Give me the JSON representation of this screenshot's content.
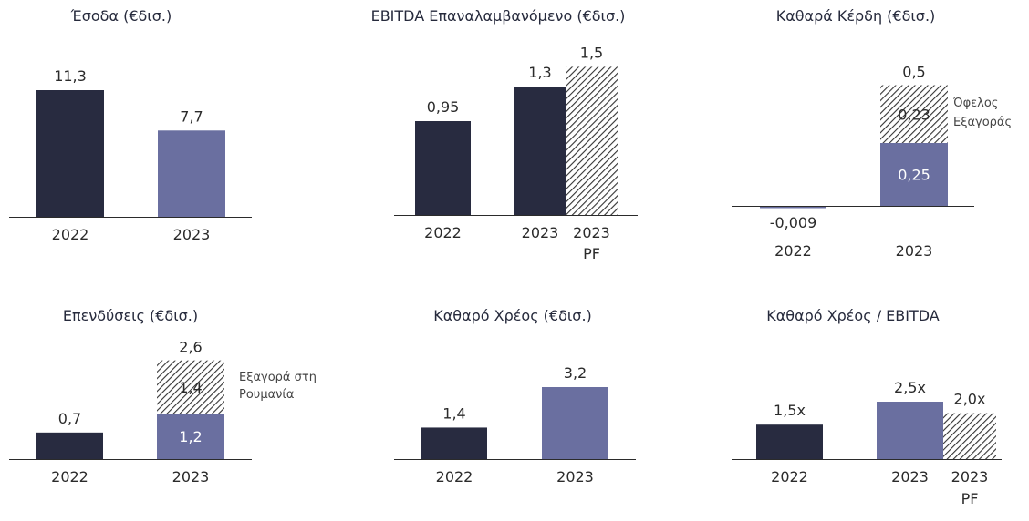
{
  "colors": {
    "dark": "#282b40",
    "purple": "#6a6fa0",
    "hatch": "#333333"
  },
  "chart_data": [
    {
      "type": "bar",
      "title": "Έσοδα (€δισ.)",
      "categories": [
        "2022",
        "2023"
      ],
      "bars": [
        {
          "value": 11.3,
          "label": "11,3",
          "color": "dark"
        },
        {
          "value": 7.7,
          "label": "7,7",
          "color": "purple"
        }
      ]
    },
    {
      "type": "bar",
      "title": "EBITDA Επαναλαμβανόμενο (€δισ.)",
      "categories": [
        "2022",
        "2023",
        "2023 PF"
      ],
      "bars": [
        {
          "value": 0.95,
          "label": "0,95",
          "color": "dark"
        },
        {
          "value": 1.3,
          "label": "1,3",
          "color": "dark"
        },
        {
          "value": 1.5,
          "label": "1,5",
          "color": "hatch"
        }
      ]
    },
    {
      "type": "bar",
      "title": "Καθαρά Κέρδη (€δισ.)",
      "categories": [
        "2022",
        "2023"
      ],
      "bars": [
        {
          "value": -0.009,
          "label": "-0,009",
          "color": "purple"
        },
        {
          "segments": [
            {
              "value": 0.25,
              "label": "0,25",
              "color": "purple"
            },
            {
              "value": 0.23,
              "label": "0,23",
              "color": "hatch"
            }
          ],
          "total_label": "0,5"
        }
      ],
      "annotation": [
        "Όφελος",
        "Εξαγοράς"
      ]
    },
    {
      "type": "bar",
      "title": "Επενδύσεις (€δισ.)",
      "categories": [
        "2022",
        "2023"
      ],
      "bars": [
        {
          "value": 0.7,
          "label": "0,7",
          "color": "dark"
        },
        {
          "segments": [
            {
              "value": 1.2,
              "label": "1,2",
              "color": "purple"
            },
            {
              "value": 1.4,
              "label": "1,4",
              "color": "hatch"
            }
          ],
          "total_label": "2,6"
        }
      ],
      "annotation": [
        "Εξαγορά στη",
        "Ρουμανία"
      ]
    },
    {
      "type": "bar",
      "title": "Καθαρό Χρέος (€δισ.)",
      "categories": [
        "2022",
        "2023"
      ],
      "bars": [
        {
          "value": 1.4,
          "label": "1,4",
          "color": "dark"
        },
        {
          "value": 3.2,
          "label": "3,2",
          "color": "purple"
        }
      ]
    },
    {
      "type": "bar",
      "title": "Καθαρό Χρέος / EBITDA",
      "categories": [
        "2022",
        "2023",
        "2023 PF"
      ],
      "bars": [
        {
          "value": 1.5,
          "label": "1,5x",
          "color": "dark"
        },
        {
          "value": 2.5,
          "label": "2,5x",
          "color": "purple"
        },
        {
          "value": 2.0,
          "label": "2,0x",
          "color": "hatch"
        }
      ]
    }
  ]
}
